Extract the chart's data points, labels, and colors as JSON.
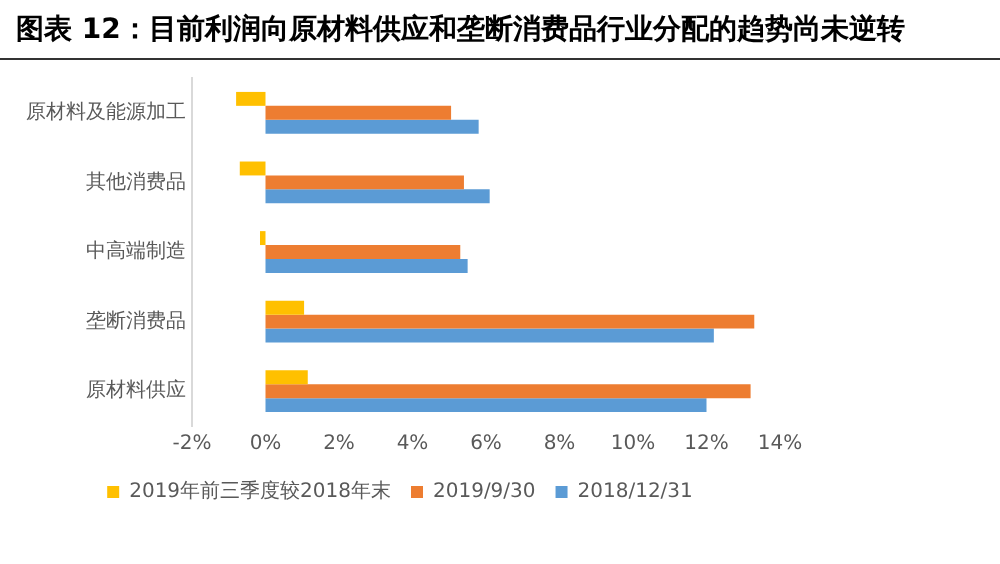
{
  "chart_data": {
    "type": "bar",
    "orientation": "horizontal",
    "title": "图表 12：目前利润向原材料供应和垄断消费品行业分配的趋势尚未逆转",
    "categories": [
      "原材料及能源加工",
      "其他消费品",
      "中高端制造",
      "垄断消费品",
      "原材料供应"
    ],
    "series": [
      {
        "name": "2019年前三季度较2018年末",
        "color": "#ffc000",
        "values": [
          -0.8,
          -0.7,
          -0.15,
          1.05,
          1.15
        ]
      },
      {
        "name": "2019/9/30",
        "color": "#ed7d31",
        "values": [
          5.05,
          5.4,
          5.3,
          13.3,
          13.2
        ]
      },
      {
        "name": "2018/12/31",
        "color": "#5b9bd5",
        "values": [
          5.8,
          6.1,
          5.5,
          12.2,
          12.0
        ]
      }
    ],
    "xlim": [
      -2,
      14
    ],
    "xticks": [
      {
        "value": -2,
        "label": "-2%"
      },
      {
        "value": 0,
        "label": "0%"
      },
      {
        "value": 2,
        "label": "2%"
      },
      {
        "value": 4,
        "label": "4%"
      },
      {
        "value": 6,
        "label": "6%"
      },
      {
        "value": 8,
        "label": "8%"
      },
      {
        "value": 10,
        "label": "10%"
      },
      {
        "value": 12,
        "label": "12%"
      },
      {
        "value": 14,
        "label": "14%"
      }
    ],
    "grid": false,
    "legend": "bottom"
  }
}
